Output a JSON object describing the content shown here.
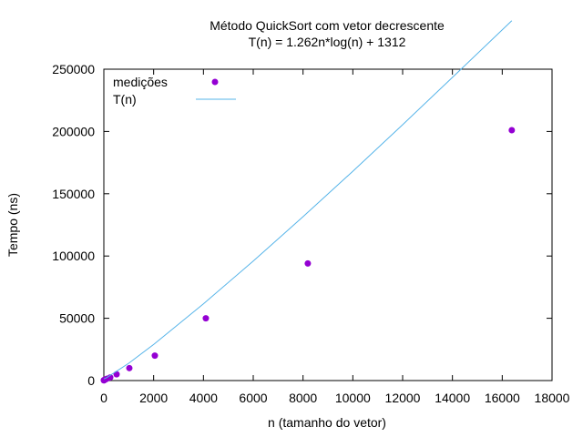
{
  "chart_data": {
    "type": "scatter",
    "title": "Método QuickSort com vetor decrescente",
    "subtitle": "T(n) = 1.262n*log(n) + 1312",
    "xlabel": "n (tamanho do vetor)",
    "ylabel": "Tempo (ns)",
    "xlim": [
      0,
      18000
    ],
    "ylim": [
      0,
      250000
    ],
    "xticks": [
      "0",
      "2000",
      "4000",
      "6000",
      "8000",
      "10000",
      "12000",
      "14000",
      "16000",
      "18000"
    ],
    "yticks": [
      "0",
      "50000",
      "100000",
      "150000",
      "200000",
      "250000"
    ],
    "grid": false,
    "legend_position": "top-left",
    "series": [
      {
        "name": "medições",
        "kind": "points",
        "color": "#9400d3",
        "x": [
          2,
          4,
          8,
          16,
          32,
          64,
          128,
          256,
          512,
          1024,
          2048,
          4096,
          8192,
          16384
        ],
        "y": [
          200,
          250,
          300,
          400,
          600,
          900,
          1500,
          2500,
          5000,
          10000,
          20000,
          50000,
          94000,
          201000
        ]
      },
      {
        "name": "T(n)",
        "kind": "line",
        "color": "#56b4e9",
        "x": [
          1,
          100,
          1000,
          2000,
          4000,
          6000,
          8000,
          10000,
          12000,
          14000,
          16384
        ],
        "y": [
          1312,
          2152,
          13889,
          28988,
          61620,
          95944,
          131546,
          168045,
          205437,
          243392,
          288950
        ]
      }
    ]
  }
}
